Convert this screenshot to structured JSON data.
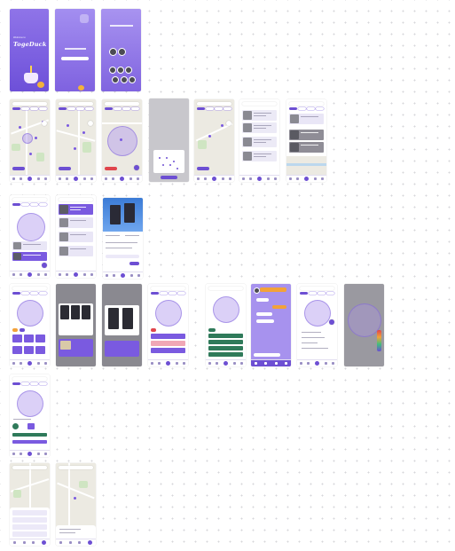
{
  "splash": {
    "app_name": "TogeDuck",
    "tagline": "Welcome to"
  },
  "colors": {
    "primary": "#6d4fd3",
    "accent_orange": "#f2a23a",
    "accent_red": "#e0454c",
    "background": "#ffffff",
    "map": "#eceae2"
  },
  "icons": [
    "search-icon",
    "plus-icon",
    "home-icon",
    "map-icon",
    "calendar-icon",
    "profile-icon",
    "location-icon"
  ]
}
